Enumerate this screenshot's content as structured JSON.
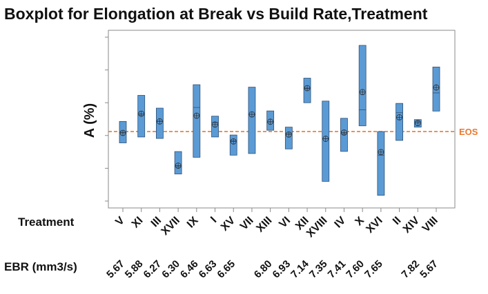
{
  "chart_data": {
    "type": "boxplot",
    "title": "Boxplot for Elongation at Break vs Build Rate,Treatment",
    "ylabel": "A (%)",
    "x_rows": [
      {
        "label": "Treatment",
        "key": "treatment"
      },
      {
        "label": "EBR (mm3/s)",
        "key": "ebr"
      }
    ],
    "ylim": [
      0,
      100
    ],
    "reference_line": {
      "label": "EOS",
      "value": 42.4,
      "color": "#e8782f"
    },
    "box_color": "#5b9bd5",
    "box_edge_color": "#2f4f75",
    "groups": [
      {
        "treatment": "V",
        "ebr": "5.67",
        "q1": 35.5,
        "median": 42.0,
        "q3": 48.6,
        "mean": 41.6
      },
      {
        "treatment": "XI",
        "ebr": "5.88",
        "q1": 39.1,
        "median": 52.5,
        "q3": 64.5,
        "mean": 53.3
      },
      {
        "treatment": "III",
        "ebr": "6.27",
        "q1": 38.2,
        "median": 48.8,
        "q3": 56.7,
        "mean": 48.6
      },
      {
        "treatment": "XVII",
        "ebr": "6.30",
        "q1": 16.5,
        "median": 21.0,
        "q3": 30.2,
        "mean": 21.6
      },
      {
        "treatment": "IX",
        "ebr": "6.46",
        "q1": 26.7,
        "median": 57.1,
        "q3": 71.0,
        "mean": 52.1
      },
      {
        "treatment": "I",
        "ebr": "6.63",
        "q1": 39.1,
        "median": 48.0,
        "q3": 51.8,
        "mean": 46.7
      },
      {
        "treatment": "XV",
        "ebr": "6.65",
        "q1": 28.0,
        "median": 36.9,
        "q3": 40.3,
        "mean": 36.4
      },
      {
        "treatment": "VII",
        "ebr": "6.80",
        "q1": 29.0,
        "median": 52.9,
        "q3": 69.5,
        "mean": 52.9
      },
      {
        "treatment": "XIII",
        "ebr": "6.80",
        "q1": 43.2,
        "median": 48.3,
        "q3": 55.0,
        "mean": 48.4
      },
      {
        "treatment": "VI",
        "ebr": "6.93",
        "q1": 31.8,
        "median": 41.3,
        "q3": 45.1,
        "mean": 40.6
      },
      {
        "treatment": "XII",
        "ebr": "7.14",
        "q1": 60.0,
        "median": 68.5,
        "q3": 75.0,
        "mean": 68.9
      },
      {
        "treatment": "XVIII",
        "ebr": "7.35",
        "q1": 12.0,
        "median": 38.0,
        "q3": 61.0,
        "mean": 38.0
      },
      {
        "treatment": "IV",
        "ebr": "7.41",
        "q1": 30.3,
        "median": 41.1,
        "q3": 50.5,
        "mean": 41.8
      },
      {
        "treatment": "X",
        "ebr": "7.60",
        "q1": 45.9,
        "median": 55.7,
        "q3": 95.0,
        "mean": 66.5
      },
      {
        "treatment": "XVI",
        "ebr": "7.65",
        "q1": 3.5,
        "median": 28.0,
        "q3": 42.4,
        "mean": 29.9
      },
      {
        "treatment": "II",
        "ebr": "7.82",
        "q1": 37.0,
        "median": 53.9,
        "q3": 59.6,
        "mean": 51.1
      },
      {
        "treatment": "XIV",
        "ebr": "7.82",
        "q1": 45.1,
        "median": 48.4,
        "q3": 49.7,
        "mean": 47.6
      },
      {
        "treatment": "VIII",
        "ebr": "5.67",
        "q1": 54.9,
        "median": 66.0,
        "q3": 81.8,
        "mean": 69.3
      }
    ],
    "ebr_labels": [
      {
        "text": "5.67",
        "after_group": 0
      },
      {
        "text": "5.88",
        "after_group": 1
      },
      {
        "text": "6.27",
        "after_group": 2
      },
      {
        "text": "6.30",
        "after_group": 3
      },
      {
        "text": "6.46",
        "after_group": 4
      },
      {
        "text": "6.63",
        "after_group": 5
      },
      {
        "text": "6.65",
        "after_group": 6
      },
      {
        "text": "6.80",
        "after_group": 8
      },
      {
        "text": "6.93",
        "after_group": 9
      },
      {
        "text": "7.14",
        "after_group": 10
      },
      {
        "text": "7.35",
        "after_group": 11
      },
      {
        "text": "7.41",
        "after_group": 12
      },
      {
        "text": "7.60",
        "after_group": 13
      },
      {
        "text": "7.65",
        "after_group": 14
      },
      {
        "text": "7.82",
        "after_group": 16
      },
      {
        "text": "5.67",
        "after_group": 17
      }
    ],
    "grid": false,
    "legend": "none"
  }
}
